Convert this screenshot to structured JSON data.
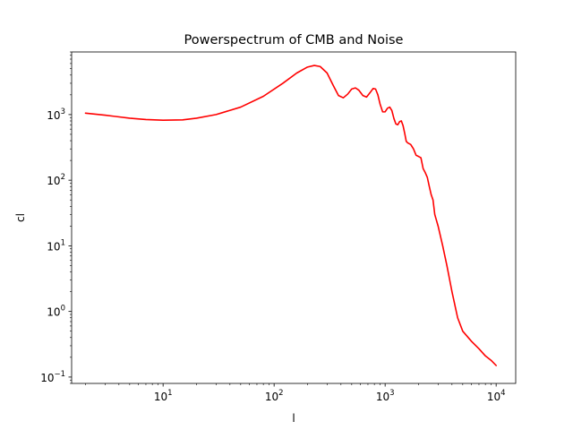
{
  "chart_data": {
    "type": "line",
    "title": "Powerspectrum of CMB and Noise",
    "xlabel": "l",
    "ylabel": "cl",
    "xscale": "log",
    "yscale": "log",
    "xlim": [
      1.5,
      15000
    ],
    "ylim": [
      0.08,
      9000
    ],
    "grid": false,
    "x_ticks": [
      {
        "base": "10",
        "exp": "1",
        "value": 10
      },
      {
        "base": "10",
        "exp": "2",
        "value": 100
      },
      {
        "base": "10",
        "exp": "3",
        "value": 1000
      },
      {
        "base": "10",
        "exp": "4",
        "value": 10000
      }
    ],
    "y_ticks": [
      {
        "base": "10",
        "exp": "−1",
        "value": 0.1
      },
      {
        "base": "10",
        "exp": "0",
        "value": 1
      },
      {
        "base": "10",
        "exp": "1",
        "value": 10
      },
      {
        "base": "10",
        "exp": "2",
        "value": 100
      },
      {
        "base": "10",
        "exp": "3",
        "value": 1000
      }
    ],
    "series": [
      {
        "color": "#ff0000",
        "x": [
          2,
          3,
          5,
          7,
          10,
          15,
          20,
          30,
          50,
          80,
          120,
          160,
          200,
          230,
          260,
          300,
          340,
          380,
          420,
          460,
          500,
          540,
          580,
          630,
          680,
          730,
          780,
          820,
          860,
          900,
          950,
          1000,
          1050,
          1100,
          1150,
          1200,
          1250,
          1300,
          1350,
          1400,
          1450,
          1500,
          1550,
          1600,
          1700,
          1800,
          1900,
          2000,
          2100,
          2200,
          2300,
          2400,
          2500,
          2600,
          2700,
          2800,
          3000,
          3300,
          3600,
          4000,
          4500,
          5000,
          6000,
          7000,
          8000,
          9000,
          10000
        ],
        "y": [
          1050,
          980,
          880,
          840,
          820,
          830,
          880,
          1000,
          1300,
          1900,
          3000,
          4300,
          5300,
          5600,
          5400,
          4300,
          2800,
          1950,
          1800,
          2050,
          2450,
          2550,
          2350,
          1950,
          1850,
          2150,
          2500,
          2450,
          2000,
          1450,
          1100,
          1100,
          1250,
          1300,
          1150,
          870,
          720,
          700,
          780,
          800,
          680,
          520,
          390,
          370,
          350,
          300,
          240,
          230,
          220,
          150,
          130,
          110,
          80,
          60,
          50,
          30,
          20,
          10,
          5,
          2,
          0.8,
          0.5,
          0.35,
          0.27,
          0.21,
          0.18,
          0.15
        ]
      }
    ]
  }
}
